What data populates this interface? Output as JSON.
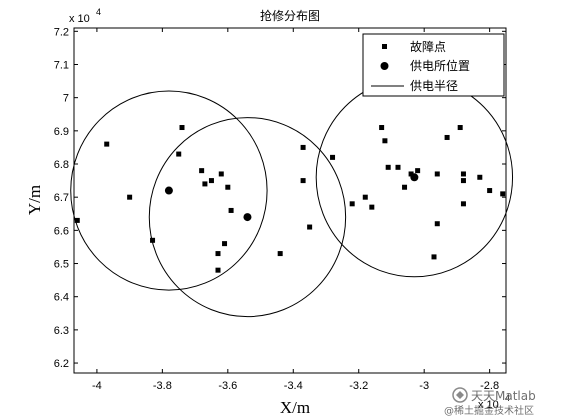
{
  "chart_data": {
    "type": "scatter",
    "title": "抢修分布图",
    "xlabel": "X/m",
    "ylabel": "Y/m",
    "x_exponent": "x 10",
    "x_exponent_power": "4",
    "y_exponent": "x 10",
    "y_exponent_power": "4",
    "xlim": [
      -4.07,
      -2.75
    ],
    "ylim": [
      6.17,
      7.21
    ],
    "xticks": [
      -4,
      -3.8,
      -3.6,
      -3.4,
      -3.2,
      -3,
      -2.8
    ],
    "xtick_labels": [
      "-4",
      "-3.8",
      "-3.6",
      "-3.4",
      "-3.2",
      "-3",
      "-2.8"
    ],
    "yticks": [
      6.2,
      6.3,
      6.4,
      6.5,
      6.6,
      6.7,
      6.8,
      6.9,
      7,
      7.1,
      7.2
    ],
    "ytick_labels": [
      "6.2",
      "6.3",
      "6.4",
      "6.5",
      "6.6",
      "6.7",
      "6.8",
      "6.9",
      "7",
      "7.1",
      "7.2"
    ],
    "legend_position": "top-right",
    "grid": false,
    "series": [
      {
        "name": "故障点",
        "marker": "square",
        "color": "#000000",
        "points": [
          [
            -4.06,
            6.63
          ],
          [
            -3.97,
            6.86
          ],
          [
            -3.9,
            6.7
          ],
          [
            -3.83,
            6.57
          ],
          [
            -3.74,
            6.91
          ],
          [
            -3.75,
            6.83
          ],
          [
            -3.68,
            6.78
          ],
          [
            -3.67,
            6.74
          ],
          [
            -3.65,
            6.75
          ],
          [
            -3.62,
            6.77
          ],
          [
            -3.6,
            6.73
          ],
          [
            -3.59,
            6.66
          ],
          [
            -3.61,
            6.56
          ],
          [
            -3.63,
            6.53
          ],
          [
            -3.63,
            6.48
          ],
          [
            -3.44,
            6.53
          ],
          [
            -3.37,
            6.85
          ],
          [
            -3.37,
            6.75
          ],
          [
            -3.35,
            6.61
          ],
          [
            -3.28,
            6.82
          ],
          [
            -3.22,
            6.68
          ],
          [
            -3.18,
            6.7
          ],
          [
            -3.16,
            6.67
          ],
          [
            -3.13,
            6.91
          ],
          [
            -3.12,
            6.87
          ],
          [
            -3.11,
            6.79
          ],
          [
            -3.08,
            6.79
          ],
          [
            -3.06,
            6.73
          ],
          [
            -3.04,
            6.77
          ],
          [
            -3.02,
            6.78
          ],
          [
            -2.97,
            6.52
          ],
          [
            -2.96,
            6.62
          ],
          [
            -2.96,
            6.77
          ],
          [
            -2.93,
            6.88
          ],
          [
            -2.89,
            6.91
          ],
          [
            -2.88,
            6.77
          ],
          [
            -2.88,
            6.75
          ],
          [
            -2.88,
            6.68
          ],
          [
            -2.83,
            6.76
          ],
          [
            -2.8,
            6.72
          ],
          [
            -2.76,
            6.71
          ]
        ]
      },
      {
        "name": "供电所位置",
        "marker": "circle",
        "color": "#000000",
        "points": [
          [
            -3.78,
            6.72
          ],
          [
            -3.54,
            6.64
          ],
          [
            -3.03,
            6.76
          ]
        ]
      },
      {
        "name": "供电半径",
        "marker": "line",
        "color": "#000000",
        "circles": [
          {
            "center": [
              -3.78,
              6.72
            ],
            "radius": 0.3
          },
          {
            "center": [
              -3.54,
              6.64
            ],
            "radius": 0.3
          },
          {
            "center": [
              -3.03,
              6.76
            ],
            "radius": 0.3
          }
        ]
      }
    ]
  },
  "watermark": {
    "brand": "天天Matlab",
    "community": "@稀土掘金技术社区"
  }
}
